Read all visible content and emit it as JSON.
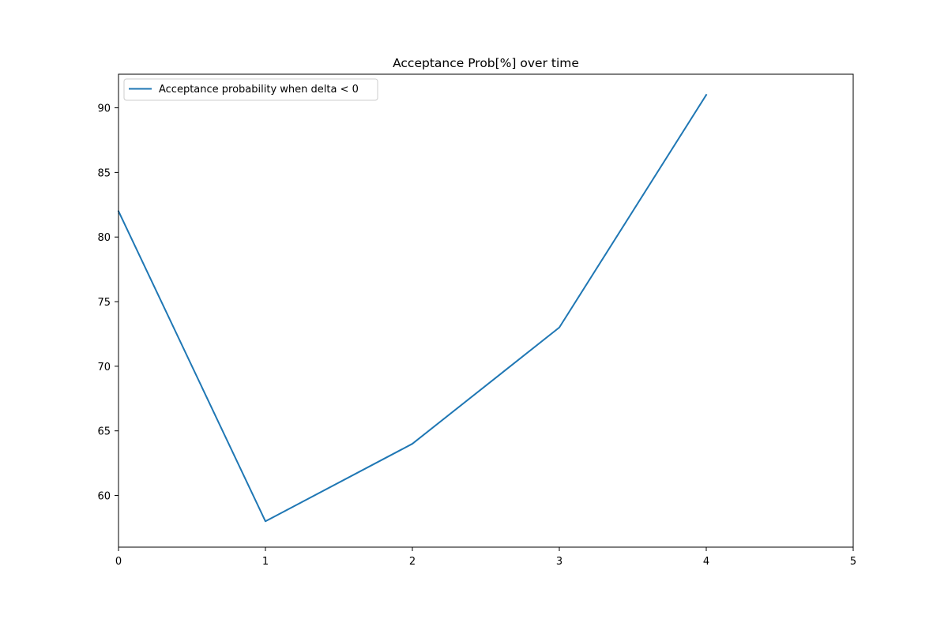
{
  "chart_data": {
    "type": "line",
    "title": "Acceptance Prob[%] over time",
    "xlabel": "",
    "ylabel": "",
    "x": [
      0,
      1,
      2,
      3,
      4
    ],
    "series": [
      {
        "name": "Acceptance probability when delta < 0",
        "values": [
          82,
          58,
          64,
          73,
          91
        ],
        "color": "#1f77b4"
      }
    ],
    "xlim": [
      0,
      5
    ],
    "ylim": [
      56,
      92.6
    ],
    "xticks": [
      0,
      1,
      2,
      3,
      4,
      5
    ],
    "yticks": [
      60,
      65,
      70,
      75,
      80,
      85,
      90
    ],
    "grid": false,
    "legend_position": "upper left"
  }
}
